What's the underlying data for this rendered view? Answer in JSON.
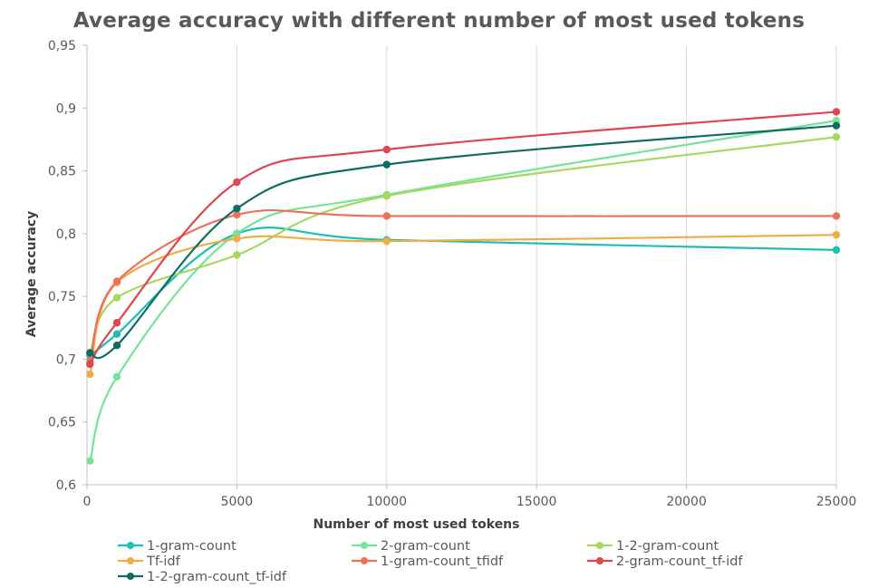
{
  "chart_data": {
    "type": "line",
    "title": "Average accuracy with different number of most used tokens",
    "xlabel": "Number of most used tokens",
    "ylabel": "Average accuracy",
    "xlim": [
      0,
      25000
    ],
    "ylim": [
      0.6,
      0.95
    ],
    "xticks": [
      0,
      5000,
      10000,
      15000,
      20000,
      25000
    ],
    "xtick_labels": [
      "0",
      "5000",
      "10000",
      "15000",
      "20000",
      "25000"
    ],
    "yticks": [
      0.6,
      0.65,
      0.7,
      0.75,
      0.8,
      0.85,
      0.9,
      0.95
    ],
    "ytick_labels": [
      "0,6",
      "0,65",
      "0,7",
      "0,75",
      "0,8",
      "0,85",
      "0,9",
      "0,95"
    ],
    "grid": "vertical",
    "legend_position": "bottom",
    "x": [
      100,
      1000,
      5000,
      10000,
      25000
    ],
    "series": [
      {
        "name": "1-gram-count",
        "color": "#1bbfb4",
        "values": [
          0.703,
          0.72,
          0.8,
          0.795,
          0.787
        ]
      },
      {
        "name": "2-gram-count",
        "color": "#76e39a",
        "values": [
          0.619,
          0.686,
          0.8,
          0.831,
          0.89
        ]
      },
      {
        "name": "1-2-gram-count",
        "color": "#a6d75e",
        "values": [
          0.705,
          0.749,
          0.783,
          0.83,
          0.877
        ]
      },
      {
        "name": "Tf-idf",
        "color": "#efae45",
        "values": [
          0.688,
          0.761,
          0.796,
          0.794,
          0.799
        ]
      },
      {
        "name": "1-gram-count_tfidf",
        "color": "#ef7058",
        "values": [
          0.698,
          0.762,
          0.815,
          0.814,
          0.814
        ]
      },
      {
        "name": "2-gram-count_tf-idf",
        "color": "#e0464f",
        "values": [
          0.696,
          0.729,
          0.841,
          0.867,
          0.897
        ]
      },
      {
        "name": "1-2-gram-count_tf-idf",
        "color": "#0e6c61",
        "values": [
          0.705,
          0.711,
          0.82,
          0.855,
          0.886
        ]
      }
    ]
  }
}
